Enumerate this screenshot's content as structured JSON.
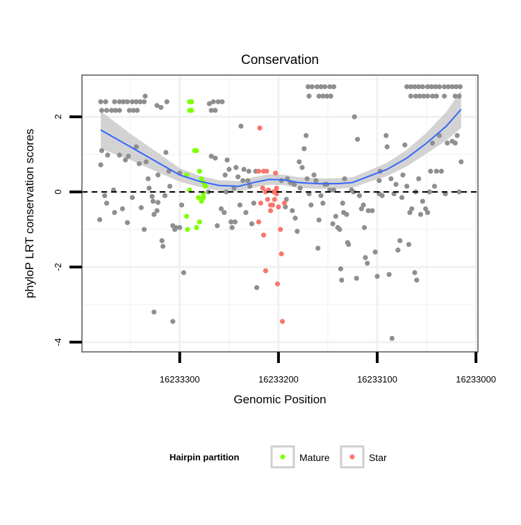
{
  "chart_data": {
    "type": "scatter",
    "title": "Conservation",
    "xlabel": "Genomic Position",
    "ylabel": "phyloP LRT conservation scores",
    "x_reversed": true,
    "x_base": 16233000,
    "xlim_offset": [
      399,
      -2
    ],
    "ylim": [
      -4.26,
      3.11
    ],
    "x_ticks": [
      300,
      200,
      100,
      0
    ],
    "x_tick_labels": [
      "16233300",
      "16233200",
      "16233100",
      "16233000"
    ],
    "y_ticks": [
      2,
      0,
      -2,
      -4
    ],
    "y_tick_labels": [
      "2",
      "0",
      "-2",
      "-4"
    ],
    "hline": 0,
    "grid": true,
    "legend": {
      "title": "Hairpin partition",
      "placement": "bottom",
      "entries": [
        {
          "label": "Mature",
          "color": "#7FFF00"
        },
        {
          "label": "Star",
          "color": "#F8766D"
        }
      ]
    },
    "colors": {
      "other": "#8f8f8f",
      "m": "#7FFF00",
      "s": "#F8766D",
      "smooth": "#3366FF",
      "band": "#c8c8c8"
    },
    "points": [
      [
        380,
        2.4
      ],
      [
        375,
        2.4
      ],
      [
        366,
        2.4
      ],
      [
        361,
        2.4
      ],
      [
        357,
        2.4
      ],
      [
        353,
        2.4
      ],
      [
        348,
        2.4
      ],
      [
        344,
        2.4
      ],
      [
        340,
        2.4
      ],
      [
        336,
        2.4
      ],
      [
        335,
        2.55
      ],
      [
        379,
        2.17
      ],
      [
        374,
        2.17
      ],
      [
        369,
        2.17
      ],
      [
        365,
        2.17
      ],
      [
        361,
        2.17
      ],
      [
        351,
        2.17
      ],
      [
        347,
        2.17
      ],
      [
        343,
        2.17
      ],
      [
        323,
        2.3
      ],
      [
        319,
        2.25
      ],
      [
        313,
        2.4
      ],
      [
        270,
        2.35
      ],
      [
        266,
        2.4
      ],
      [
        261,
        2.4
      ],
      [
        257,
        2.4
      ],
      [
        268,
        2.17
      ],
      [
        264,
        2.17
      ],
      [
        170,
        2.8
      ],
      [
        166,
        2.8
      ],
      [
        161,
        2.8
      ],
      [
        157,
        2.8
      ],
      [
        153,
        2.8
      ],
      [
        148,
        2.8
      ],
      [
        144,
        2.8
      ],
      [
        169,
        2.55
      ],
      [
        159,
        2.55
      ],
      [
        155,
        2.55
      ],
      [
        151,
        2.55
      ],
      [
        147,
        2.55
      ],
      [
        70,
        2.8
      ],
      [
        66,
        2.8
      ],
      [
        62,
        2.8
      ],
      [
        58,
        2.8
      ],
      [
        54,
        2.8
      ],
      [
        49,
        2.8
      ],
      [
        45,
        2.8
      ],
      [
        41,
        2.8
      ],
      [
        37,
        2.8
      ],
      [
        32,
        2.8
      ],
      [
        28,
        2.8
      ],
      [
        24,
        2.8
      ],
      [
        20,
        2.8
      ],
      [
        16,
        2.8
      ],
      [
        66,
        2.55
      ],
      [
        61,
        2.55
      ],
      [
        57,
        2.55
      ],
      [
        53,
        2.55
      ],
      [
        49,
        2.55
      ],
      [
        44,
        2.55
      ],
      [
        40,
        2.55
      ],
      [
        32,
        2.55
      ],
      [
        21,
        2.55
      ],
      [
        17,
        2.55
      ],
      [
        381,
        -0.74
      ],
      [
        379,
        1.1
      ],
      [
        380,
        0.72
      ],
      [
        376,
        -0.1
      ],
      [
        374,
        -0.3
      ],
      [
        373,
        0.98
      ],
      [
        367,
        0.05
      ],
      [
        366,
        -0.55
      ],
      [
        361,
        0.98
      ],
      [
        358,
        -0.45
      ],
      [
        355,
        0.85
      ],
      [
        353,
        -0.82
      ],
      [
        352,
        0.95
      ],
      [
        348,
        -0.15
      ],
      [
        344,
        1.2
      ],
      [
        341,
        0.75
      ],
      [
        339,
        -0.42
      ],
      [
        336,
        -1.0
      ],
      [
        334,
        0.8
      ],
      [
        332,
        0.35
      ],
      [
        331,
        0.1
      ],
      [
        328,
        -0.12
      ],
      [
        327,
        -0.25
      ],
      [
        326,
        -0.6
      ],
      [
        323,
        -0.5
      ],
      [
        322,
        0.45
      ],
      [
        318,
        -1.3
      ],
      [
        317,
        -1.45
      ],
      [
        314,
        1.05
      ],
      [
        311,
        0.55
      ],
      [
        310,
        0.15
      ],
      [
        307,
        -0.9
      ],
      [
        305,
        -1.0
      ],
      [
        304,
        -0.95
      ],
      [
        300,
        -0.95
      ],
      [
        300,
        0.5
      ],
      [
        298,
        -0.35
      ],
      [
        296,
        -2.15
      ],
      [
        326,
        -3.2
      ],
      [
        307,
        -3.45
      ],
      [
        315,
        -0.1
      ],
      [
        322,
        -0.28
      ],
      [
        271,
        0.0
      ],
      [
        268,
        0.95
      ],
      [
        264,
        0.9
      ],
      [
        262,
        -0.9
      ],
      [
        258,
        -0.45
      ],
      [
        255,
        -0.55
      ],
      [
        254,
        0.45
      ],
      [
        253,
        0.0
      ],
      [
        252,
        0.85
      ],
      [
        250,
        0.6
      ],
      [
        248,
        -0.8
      ],
      [
        247,
        -0.95
      ],
      [
        245,
        0.1
      ],
      [
        244,
        -0.8
      ],
      [
        243,
        0.65
      ],
      [
        241,
        0.4
      ],
      [
        239,
        -0.35
      ],
      [
        238,
        1.75
      ],
      [
        236,
        0.3
      ],
      [
        235,
        0.6
      ],
      [
        233,
        -0.55
      ],
      [
        231,
        0.3
      ],
      [
        230,
        0.55
      ],
      [
        229,
        0.15
      ],
      [
        227,
        -0.85
      ],
      [
        225,
        -0.3
      ],
      [
        223,
        0.55
      ],
      [
        222,
        -2.55
      ],
      [
        197,
        0.3
      ],
      [
        193,
        -0.4
      ],
      [
        192,
        -0.2
      ],
      [
        191,
        0.35
      ],
      [
        188,
        0.25
      ],
      [
        186,
        -0.5
      ],
      [
        184,
        0.2
      ],
      [
        183,
        -0.7
      ],
      [
        181,
        -1.05
      ],
      [
        179,
        0.8
      ],
      [
        178,
        0.1
      ],
      [
        176,
        0.65
      ],
      [
        174,
        1.15
      ],
      [
        172,
        1.5
      ],
      [
        171,
        0.35
      ],
      [
        169,
        -0.05
      ],
      [
        167,
        -0.35
      ],
      [
        164,
        0.45
      ],
      [
        162,
        0.3
      ],
      [
        160,
        -1.5
      ],
      [
        159,
        -0.75
      ],
      [
        157,
        -0.1
      ],
      [
        155,
        -0.3
      ],
      [
        153,
        0.2
      ],
      [
        151,
        0.2
      ],
      [
        148,
        0.05
      ],
      [
        145,
        -0.85
      ],
      [
        144,
        0.05
      ],
      [
        142,
        -0.65
      ],
      [
        140,
        -0.95
      ],
      [
        138,
        -1.0
      ],
      [
        137,
        -2.05
      ],
      [
        136,
        -2.35
      ],
      [
        135,
        -0.3
      ],
      [
        134,
        -0.55
      ],
      [
        133,
        0.35
      ],
      [
        131,
        -0.6
      ],
      [
        130,
        -1.35
      ],
      [
        129,
        -1.4
      ],
      [
        126,
        0.05
      ],
      [
        124,
        0.0
      ],
      [
        123,
        2.0
      ],
      [
        121,
        -2.3
      ],
      [
        120,
        1.4
      ],
      [
        118,
        -0.1
      ],
      [
        116,
        -0.45
      ],
      [
        114,
        -0.35
      ],
      [
        113,
        -0.95
      ],
      [
        112,
        -1.75
      ],
      [
        110,
        -1.9
      ],
      [
        109,
        -0.5
      ],
      [
        105,
        -0.5
      ],
      [
        102,
        -1.6
      ],
      [
        100,
        -2.25
      ],
      [
        98,
        0.3
      ],
      [
        97,
        0.55
      ],
      [
        95,
        -0.1
      ],
      [
        91,
        1.5
      ],
      [
        90,
        1.2
      ],
      [
        88,
        -2.2
      ],
      [
        86,
        0.35
      ],
      [
        85,
        -3.9
      ],
      [
        83,
        -0.05
      ],
      [
        81,
        0.2
      ],
      [
        79,
        -1.55
      ],
      [
        77,
        -1.3
      ],
      [
        75,
        -0.15
      ],
      [
        74,
        0.45
      ],
      [
        72,
        1.25
      ],
      [
        70,
        0.15
      ],
      [
        68,
        -1.4
      ],
      [
        67,
        -0.55
      ],
      [
        65,
        -0.45
      ],
      [
        62,
        -2.15
      ],
      [
        61,
        0.0
      ],
      [
        60,
        -2.35
      ],
      [
        58,
        0.35
      ],
      [
        56,
        -0.6
      ],
      [
        54,
        -0.25
      ],
      [
        51,
        -0.45
      ],
      [
        49,
        -0.55
      ],
      [
        46,
        0.55
      ],
      [
        44,
        1.3
      ],
      [
        42,
        0.15
      ],
      [
        40,
        0.55
      ],
      [
        37,
        1.5
      ],
      [
        35,
        0.55
      ],
      [
        31,
        -0.05
      ],
      [
        29,
        1.3
      ],
      [
        24,
        1.35
      ],
      [
        21,
        1.3
      ],
      [
        19,
        1.5
      ],
      [
        17,
        0.0
      ],
      [
        15,
        0.8
      ],
      [
        47,
        0.0
      ],
      [
        98,
        -0.05
      ]
    ],
    "mature_points": [
      [
        290,
        2.4
      ],
      [
        288,
        2.4
      ],
      [
        290,
        2.17
      ],
      [
        288,
        2.17
      ],
      [
        293,
        0.45
      ],
      [
        290,
        0.05
      ],
      [
        293,
        -0.65
      ],
      [
        292,
        -1.0
      ],
      [
        283,
        -0.95
      ],
      [
        280,
        -0.8
      ],
      [
        283,
        1.1
      ],
      [
        285,
        1.1
      ],
      [
        280,
        0.55
      ],
      [
        278,
        0.35
      ],
      [
        276,
        0.25
      ],
      [
        274,
        0.15
      ],
      [
        281,
        -0.15
      ],
      [
        278,
        -0.25
      ],
      [
        276,
        -0.15
      ],
      [
        276,
        -0.05
      ]
    ],
    "star_points": [
      [
        219,
        1.7
      ],
      [
        220,
        0.55
      ],
      [
        215,
        0.55
      ],
      [
        212,
        0.55
      ],
      [
        211,
        -0.2
      ],
      [
        208,
        -0.35
      ],
      [
        206,
        -0.35
      ],
      [
        204,
        -0.2
      ],
      [
        203,
        0.5
      ],
      [
        202,
        0.1
      ],
      [
        216,
        0.1
      ],
      [
        213,
        0.0
      ],
      [
        210,
        0.05
      ],
      [
        205,
        0.0
      ],
      [
        202,
        0.0
      ],
      [
        220,
        -0.8
      ],
      [
        215,
        -1.15
      ],
      [
        213,
        -2.1
      ],
      [
        201,
        -2.45
      ],
      [
        198,
        -1.0
      ],
      [
        197,
        -1.65
      ],
      [
        196,
        -3.45
      ],
      [
        200,
        -0.4
      ],
      [
        194,
        -0.3
      ],
      [
        218,
        -0.3
      ],
      [
        208,
        -0.5
      ],
      [
        202,
        -0.05
      ]
    ],
    "smooth": {
      "x": [
        380,
        350,
        320,
        300,
        280,
        260,
        240,
        225,
        210,
        195,
        180,
        160,
        140,
        125,
        110,
        90,
        70,
        50,
        30,
        15
      ],
      "y": [
        1.65,
        1.2,
        0.75,
        0.45,
        0.28,
        0.17,
        0.15,
        0.25,
        0.33,
        0.32,
        0.25,
        0.22,
        0.22,
        0.25,
        0.4,
        0.6,
        0.9,
        1.3,
        1.75,
        2.2
      ],
      "se": [
        0.5,
        0.35,
        0.25,
        0.18,
        0.15,
        0.14,
        0.14,
        0.14,
        0.14,
        0.14,
        0.14,
        0.14,
        0.14,
        0.14,
        0.15,
        0.18,
        0.22,
        0.28,
        0.38,
        0.5
      ]
    }
  }
}
